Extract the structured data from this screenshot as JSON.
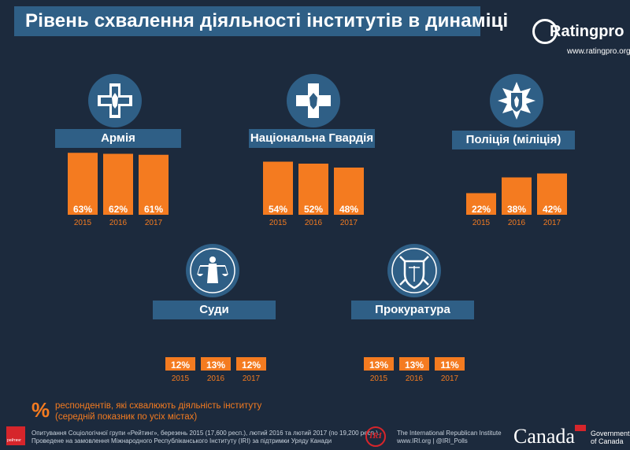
{
  "title": "Рівень схвалення діяльності інститутів в динаміці",
  "logo": {
    "text": "Ratingpro",
    "url": "www.ratingpro.org"
  },
  "colors": {
    "background": "#1c2a3d",
    "bar": "#f47b20",
    "label_box": "#2f5f86",
    "text": "#ffffff"
  },
  "chart_data": [
    {
      "type": "bar",
      "title": "Армія",
      "icon": "army-cross-icon",
      "categories": [
        "2015",
        "2016",
        "2017"
      ],
      "values": [
        63,
        62,
        61
      ],
      "value_labels": [
        "63%",
        "62%",
        "61%"
      ],
      "ylim": [
        0,
        100
      ]
    },
    {
      "type": "bar",
      "title": "Національна Гвардія",
      "icon": "guard-cross-icon",
      "categories": [
        "2015",
        "2016",
        "2017"
      ],
      "values": [
        54,
        52,
        48
      ],
      "value_labels": [
        "54%",
        "52%",
        "48%"
      ],
      "ylim": [
        0,
        100
      ]
    },
    {
      "type": "bar",
      "title": "Поліція (міліція)",
      "icon": "police-star-icon",
      "categories": [
        "2015",
        "2016",
        "2017"
      ],
      "values": [
        22,
        38,
        42
      ],
      "value_labels": [
        "22%",
        "38%",
        "42%"
      ],
      "ylim": [
        0,
        100
      ]
    },
    {
      "type": "bar",
      "title": "Суди",
      "icon": "justice-icon",
      "categories": [
        "2015",
        "2016",
        "2017"
      ],
      "values": [
        12,
        13,
        12
      ],
      "value_labels": [
        "12%",
        "13%",
        "12%"
      ],
      "ylim": [
        0,
        100
      ]
    },
    {
      "type": "bar",
      "title": "Прокуратура",
      "icon": "prosecutor-shield-icon",
      "categories": [
        "2015",
        "2016",
        "2017"
      ],
      "values": [
        13,
        13,
        11
      ],
      "value_labels": [
        "13%",
        "13%",
        "11%"
      ],
      "ylim": [
        0,
        100
      ]
    }
  ],
  "note": {
    "symbol": "%",
    "line1": "респондентів, які схвалюють діяльність інституту",
    "line2": "(середній показник по усіх містах)"
  },
  "footer": {
    "source_line1": "Опитування Соціологічної групи «Рейтинг», березень 2015 (17,600 респ.), лютий 2016 та лютий 2017 (по 19,200 респ.).",
    "source_line2": "Проведене на замовлення Міжнародного Республіканського Інституту (IRI) за підтримки Уряду Канади",
    "reiting_logo": "рейтинг",
    "iri_logo": "IRI",
    "iri_line1": "The International Republican Institute",
    "iri_line2": "www.IRI.org | @IRI_Polls",
    "canada": "Canada",
    "gov_line1": "Government",
    "gov_line2": "of Canada"
  }
}
